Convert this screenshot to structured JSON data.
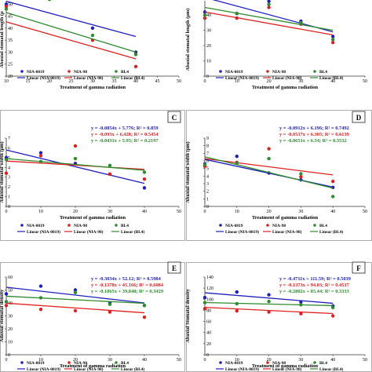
{
  "chart_data": [
    {
      "type": "scatter",
      "panel_letter": "",
      "xlabel": "Treatment of gamma radiation",
      "ylabel": "Abaxial stomatal length (μ",
      "xlim": [
        10,
        50
      ],
      "ylim": [
        20,
        55
      ],
      "xticks": [
        "10",
        "15",
        "20",
        "25",
        "30",
        "35",
        "40",
        "45",
        "50"
      ],
      "yticks": [
        "20",
        "25",
        "30",
        "35",
        "40",
        "45",
        "50"
      ],
      "equations": [],
      "legend": [
        "NIA-0819",
        "NIA-98",
        "BL4",
        "Linear (NIA-0819)",
        "Linear (NIA-98)",
        "Linear (BL4)"
      ],
      "series": [
        {
          "name": "NIA-0819",
          "color": "#1f1fbf",
          "x": [
            10,
            20,
            30,
            40
          ],
          "y": [
            50,
            55,
            40,
            30
          ],
          "fit": [
            51.2,
            36.5
          ]
        },
        {
          "name": "NIA-98",
          "color": "#e02020",
          "x": [
            10,
            20,
            30,
            40
          ],
          "y": [
            49,
            54,
            35,
            24
          ],
          "fit": [
            42.6,
            27.2
          ]
        },
        {
          "name": "BL4",
          "color": "#2e8b2e",
          "x": [
            10,
            20,
            30,
            40
          ],
          "y": [
            48,
            52,
            37,
            29
          ],
          "fit": [
            46.5,
            30.0
          ]
        }
      ]
    },
    {
      "type": "scatter",
      "panel_letter": "",
      "xlabel": "Treatment of gamma radiation",
      "ylabel": "Abaxial stomatal length (μm)",
      "xlim": [
        0,
        50
      ],
      "ylim": [
        0,
        55
      ],
      "xticks": [
        "0",
        "10",
        "20",
        "30",
        "40",
        "50"
      ],
      "yticks": [
        "0",
        "10",
        "20",
        "30",
        "40",
        "50"
      ],
      "equations": [],
      "legend": [
        "NIA-0819",
        "NIA-98",
        "BL4",
        "Linear (NIA-0819)",
        "Linear (NIA-98)",
        "Linear (BL4)"
      ],
      "series": [
        {
          "name": "NIA-0819",
          "color": "#1f1fbf",
          "x": [
            0,
            10,
            20,
            30,
            40
          ],
          "y": [
            42,
            41,
            49,
            36,
            26
          ],
          "fit": [
            51.5,
            29.0
          ]
        },
        {
          "name": "NIA-98",
          "color": "#e02020",
          "x": [
            0,
            10,
            20,
            30,
            40
          ],
          "y": [
            38,
            38,
            45,
            34,
            22
          ],
          "fit": [
            42.0,
            27.0
          ]
        },
        {
          "name": "BL4",
          "color": "#2e8b2e",
          "x": [
            0,
            10,
            20,
            30,
            40
          ],
          "y": [
            40,
            41,
            47,
            35,
            24
          ],
          "fit": [
            45.0,
            30.0
          ]
        }
      ]
    },
    {
      "type": "scatter",
      "panel_letter": "C",
      "xlabel": "Treatment of gamma radiation",
      "ylabel": "Adaxial stomatal width (μm)",
      "xlim": [
        0,
        50
      ],
      "ylim": [
        0,
        7
      ],
      "xticks": [
        "0",
        "10",
        "20",
        "30",
        "40",
        "50"
      ],
      "yticks": [
        "0",
        "1",
        "2",
        "3",
        "4",
        "5",
        "6",
        "7"
      ],
      "equations": [
        "y = -0.0854x + 5.776; R² = 0.859",
        "y = -0.093x + 6.428; R² = 0.5454",
        "y = -0.0431x + 5.95; R² = 0.2197"
      ],
      "legend": [
        "NIA-0819",
        "NIA-98",
        "BL4",
        "Linear (NIA-0819)",
        "Linear (NIA-98)",
        "Linear (BL4)"
      ],
      "series": [
        {
          "name": "NIA-0819",
          "color": "#1f1fbf",
          "x": [
            0,
            10,
            20,
            30,
            40
          ],
          "y": [
            5.0,
            5.5,
            4.4,
            3.3,
            1.9
          ],
          "fit": [
            5.78,
            2.36
          ]
        },
        {
          "name": "NIA-98",
          "color": "#e02020",
          "x": [
            0,
            10,
            20,
            30,
            40
          ],
          "y": [
            3.4,
            5.2,
            6.2,
            3.3,
            2.8
          ],
          "fit": [
            4.65,
            3.8
          ]
        },
        {
          "name": "BL4",
          "color": "#2e8b2e",
          "x": [
            0,
            10,
            20,
            30,
            40
          ],
          "y": [
            4.8,
            4.6,
            4.9,
            4.2,
            3.5
          ],
          "fit": [
            4.9,
            3.7
          ]
        }
      ]
    },
    {
      "type": "scatter",
      "panel_letter": "D",
      "xlabel": "Treatment of gamma radiation",
      "ylabel": "Abaxial stomatal width (μm)",
      "xlim": [
        0,
        50
      ],
      "ylim": [
        0,
        9
      ],
      "xticks": [
        "0",
        "10",
        "20",
        "30",
        "40",
        "50"
      ],
      "yticks": [
        "0",
        "1",
        "2",
        "3",
        "4",
        "5",
        "6",
        "7",
        "8",
        "9"
      ],
      "equations": [
        "y = -0.0912x + 6.196; R² = 0.7492",
        "y = -0.0537x + 6.305; R² = 0.6139",
        "y = -0.0651x + 6.54; R² = 0.3532"
      ],
      "legend": [
        "NIA-0819",
        "NIA-98",
        "BL4",
        "Linear (NIA-0819)",
        "Linear (NIA-98)",
        "Linear (BL4)"
      ],
      "series": [
        {
          "name": "NIA-0819",
          "color": "#1f1fbf",
          "x": [
            0,
            10,
            20,
            30,
            40
          ],
          "y": [
            5.6,
            6.6,
            4.4,
            3.5,
            2.5
          ],
          "fit": [
            6.2,
            2.55
          ]
        },
        {
          "name": "NIA-98",
          "color": "#e02020",
          "x": [
            0,
            10,
            20,
            30,
            40
          ],
          "y": [
            5.3,
            5.8,
            7.6,
            3.9,
            3.3
          ],
          "fit": [
            6.3,
            4.15
          ]
        },
        {
          "name": "BL4",
          "color": "#2e8b2e",
          "x": [
            0,
            10,
            20,
            30,
            40
          ],
          "y": [
            5.5,
            5.7,
            6.3,
            4.3,
            1.3
          ],
          "fit": [
            6.54,
            2.4
          ]
        }
      ]
    },
    {
      "type": "scatter",
      "panel_letter": "E",
      "xlabel": "Treatment of gamma radiation",
      "ylabel": "Adaxial stomatal density",
      "xlim": [
        0,
        50
      ],
      "ylim": [
        0,
        60
      ],
      "xticks": [
        "0",
        "10",
        "20",
        "30",
        "40",
        "50"
      ],
      "yticks": [
        "0",
        "10",
        "20",
        "30",
        "40",
        "50",
        "60"
      ],
      "equations": [
        "y = -0.3034x + 52.12; R² = 0.5984",
        "y = -0.1378x + 45.166; R² = 0.6084",
        "y = -0.1865x + 39.848; R² = 0.3429"
      ],
      "legend": [
        "NIA-0819",
        "NIA-98",
        "BL4",
        "Linear (NIA-0819)",
        "Linear (NIA-98)",
        "Linear (BL4)"
      ],
      "series": [
        {
          "name": "NIA-0819",
          "color": "#1f1fbf",
          "x": [
            0,
            10,
            20,
            30,
            40
          ],
          "y": [
            47,
            53,
            50,
            40,
            38
          ],
          "fit": [
            52.1,
            40.0
          ]
        },
        {
          "name": "NIA-98",
          "color": "#e02020",
          "x": [
            0,
            10,
            20,
            30,
            40
          ],
          "y": [
            38,
            35,
            34,
            33,
            29
          ],
          "fit": [
            39.8,
            32.4
          ]
        },
        {
          "name": "BL4",
          "color": "#2e8b2e",
          "x": [
            0,
            10,
            20,
            30,
            40
          ],
          "y": [
            41,
            44,
            48,
            39,
            38
          ],
          "fit": [
            45.2,
            39.7
          ]
        }
      ]
    },
    {
      "type": "scatter",
      "panel_letter": "F",
      "xlabel": "Treatment of gamma radiation",
      "ylabel": "Abaxial Stomatal density",
      "xlim": [
        0,
        50
      ],
      "ylim": [
        0,
        140
      ],
      "xticks": [
        "0",
        "10",
        "20",
        "30",
        "40",
        "50"
      ],
      "yticks": [
        "0",
        "20",
        "40",
        "60",
        "80",
        "100",
        "120",
        "140"
      ],
      "equations": [
        "y = -0.4711x + 111.59; R² = 0.5039",
        "y = -0.1373x + 94.03; R² = 0.4537",
        "y = -0.2802x + 85.44; R² = 0.3333"
      ],
      "legend": [
        "NIA-0819",
        "NIA-98",
        "BL4",
        "Linear (NIA-0819)",
        "Linear (NIA-98)",
        "Linear (BL4)"
      ],
      "series": [
        {
          "name": "NIA-0819",
          "color": "#1f1fbf",
          "x": [
            0,
            10,
            20,
            30,
            40
          ],
          "y": [
            103,
            113,
            108,
            95,
            88
          ],
          "fit": [
            111.6,
            92.7
          ]
        },
        {
          "name": "NIA-98",
          "color": "#e02020",
          "x": [
            0,
            10,
            20,
            30,
            40
          ],
          "y": [
            83,
            79,
            77,
            74,
            70
          ],
          "fit": [
            85.4,
            74.2
          ]
        },
        {
          "name": "BL4",
          "color": "#2e8b2e",
          "x": [
            0,
            10,
            20,
            30,
            40
          ],
          "y": [
            94,
            92,
            96,
            90,
            85
          ],
          "fit": [
            94.0,
            88.5
          ]
        }
      ]
    }
  ]
}
